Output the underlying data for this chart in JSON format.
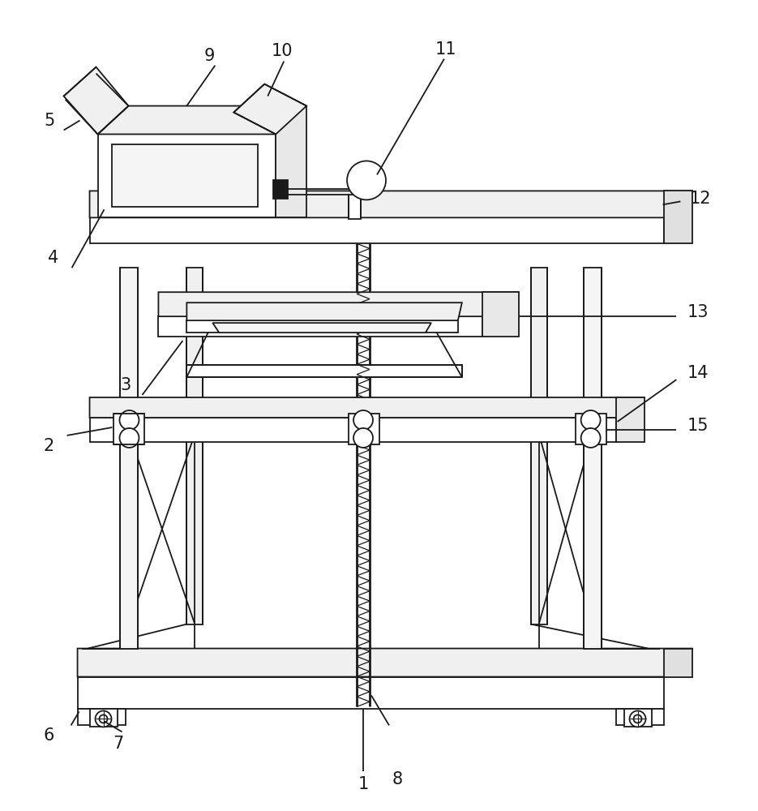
{
  "bg_color": "#ffffff",
  "lc": "#1a1a1a",
  "lw": 1.3,
  "tlw": 2.0,
  "figsize": [
    9.35,
    10.0
  ],
  "dpi": 100,
  "label_fs": 15
}
